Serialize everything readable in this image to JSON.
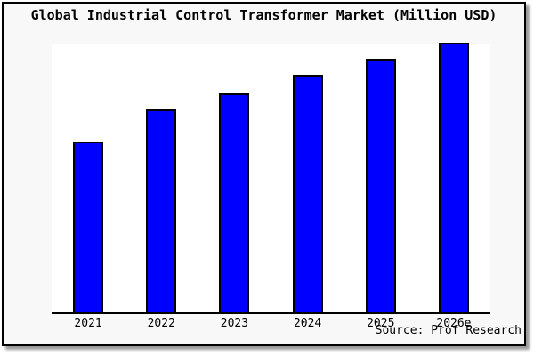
{
  "page": {
    "background": "#ffffff",
    "frame_background": "#f8f8f8",
    "plot_background": "#ffffff",
    "frame_border_color": "#000000",
    "shadow_color": "#9a9a9a"
  },
  "chart_data": {
    "type": "bar",
    "title": "Global Industrial Control Transformer Market (Million USD)",
    "categories": [
      "2021",
      "2022",
      "2023",
      "2024",
      "2025",
      "2026e"
    ],
    "values": [
      63,
      75,
      81,
      88,
      94,
      100
    ],
    "values_note": "chart shows no y-axis or value labels; values are relative bar heights with 2026e = 100",
    "xlabel": "",
    "ylabel": "",
    "ylim": [
      0,
      100
    ],
    "grid": false,
    "legend": "none",
    "bar_color": "#0000ff",
    "bar_border_color": "#000000",
    "axis_line_color": "#000000",
    "source": "Source: Prof Research"
  }
}
